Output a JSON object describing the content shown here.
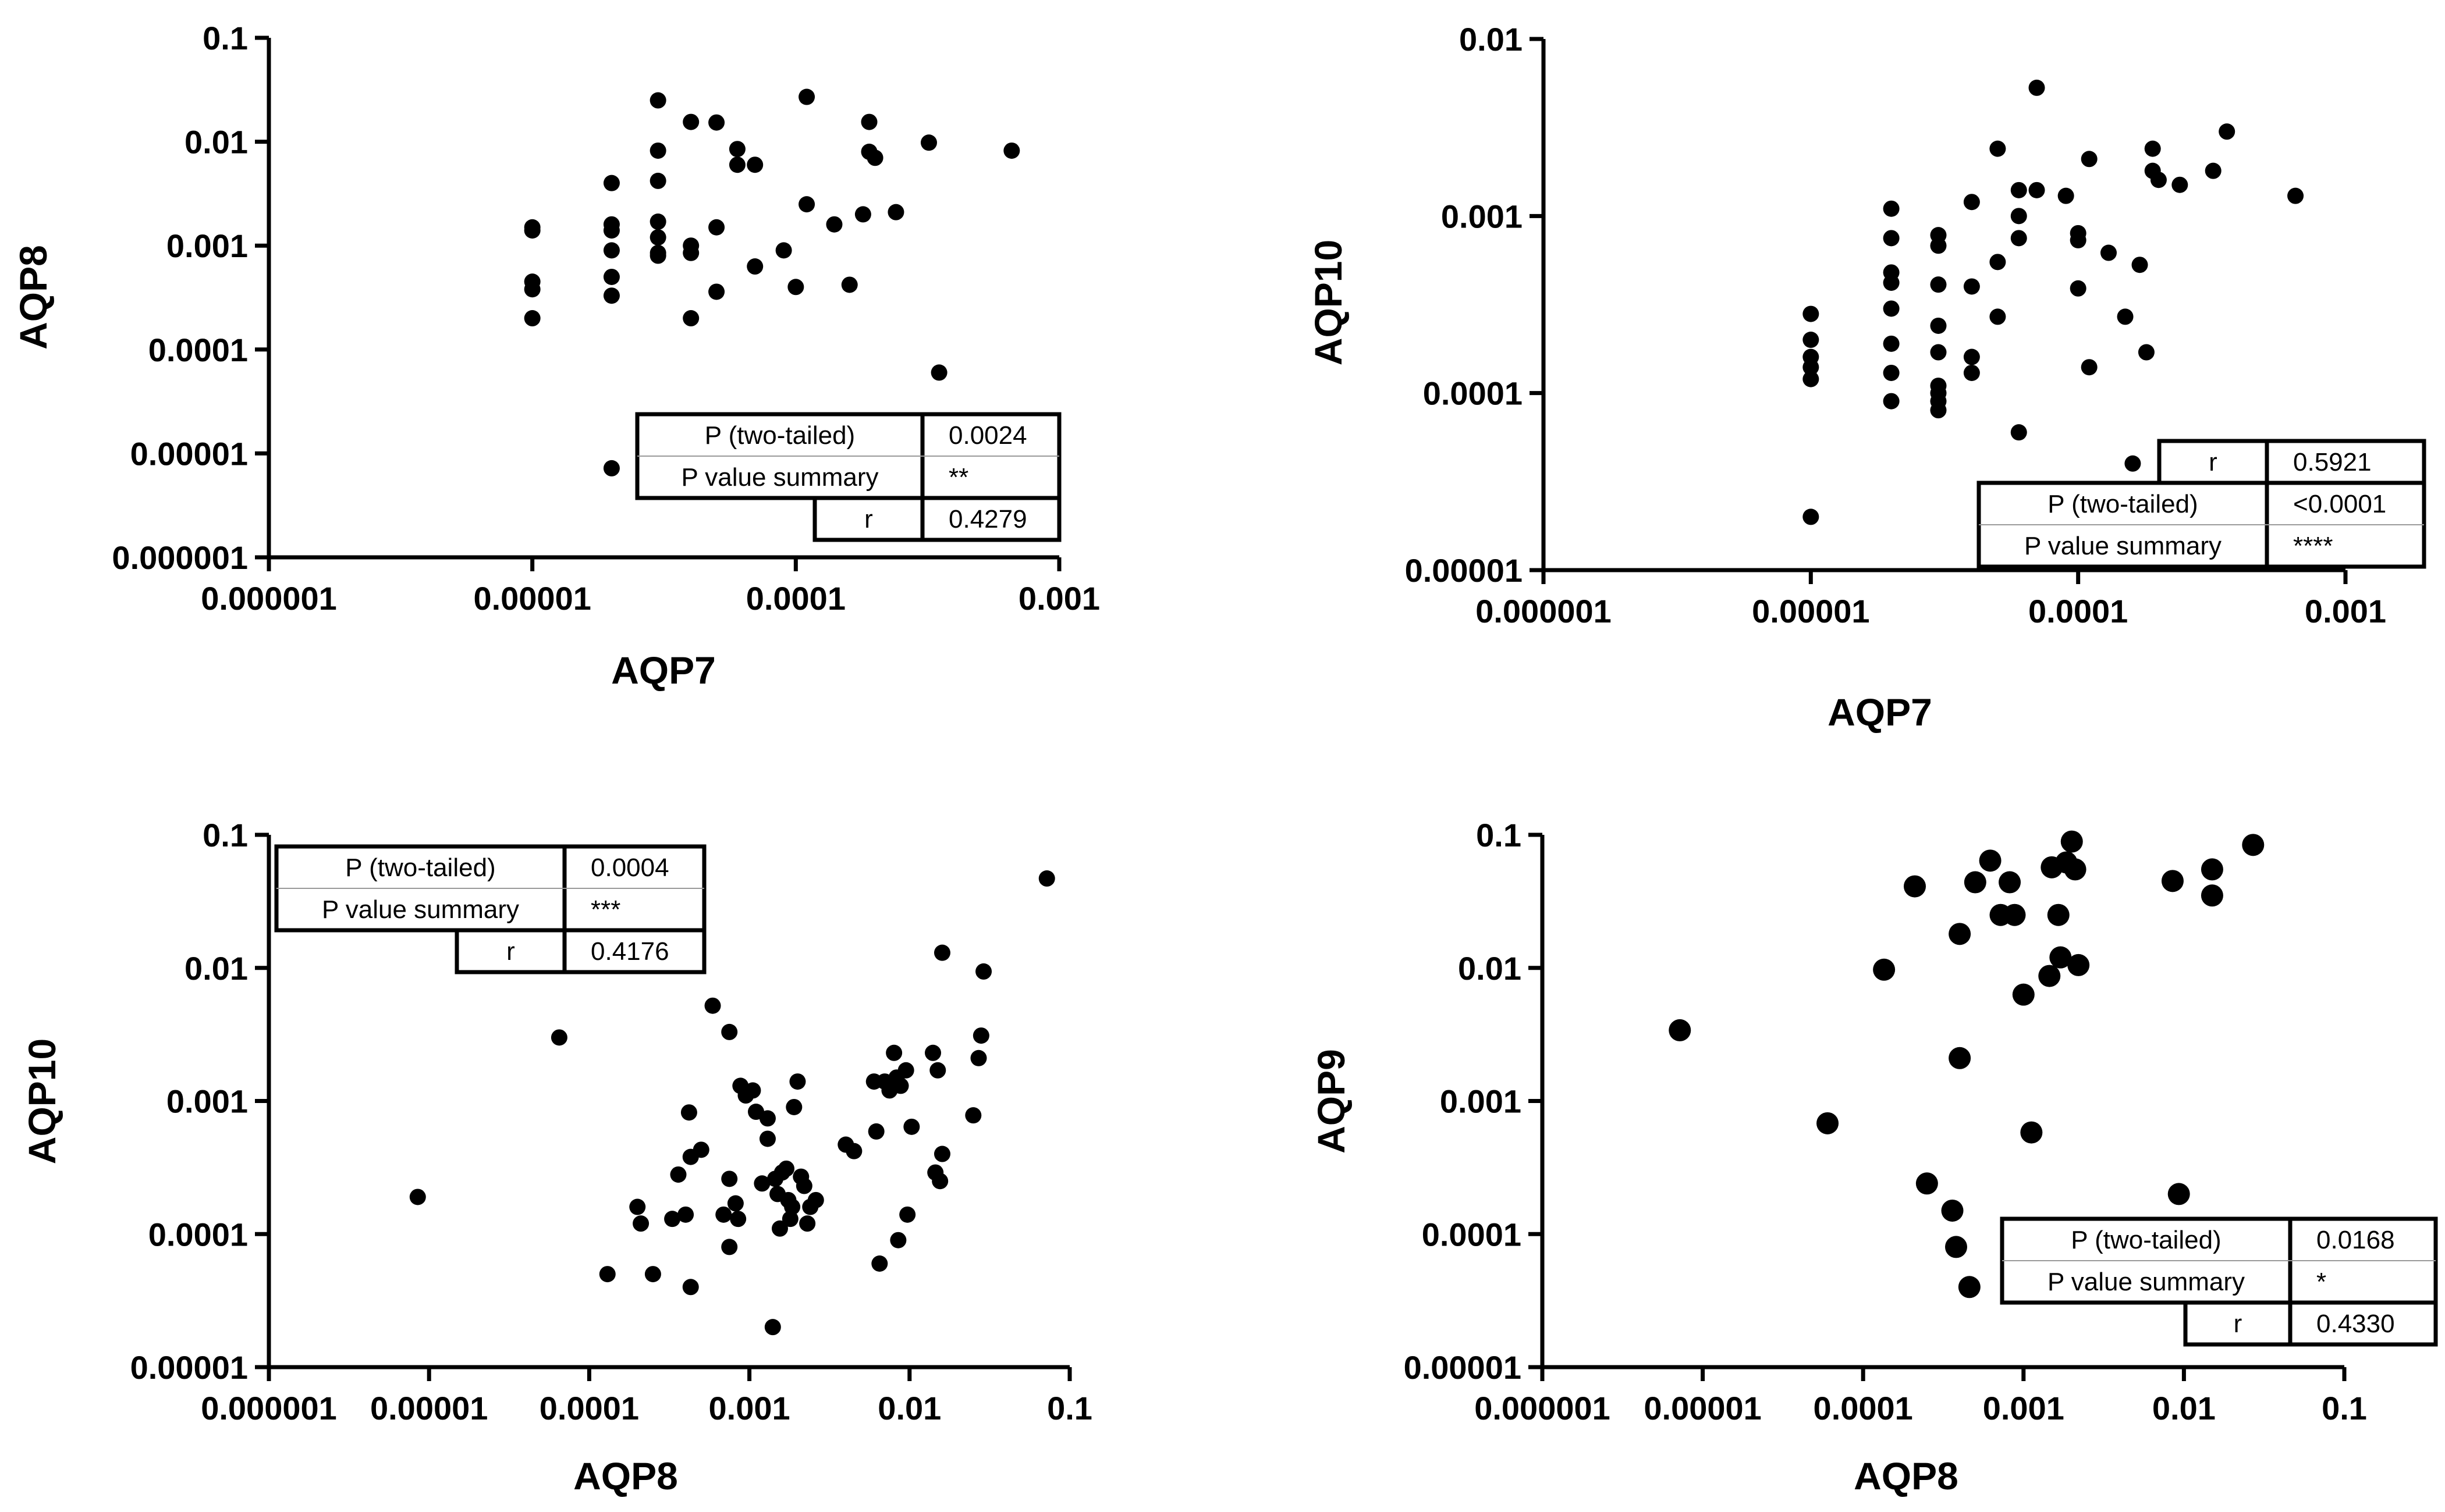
{
  "chart_data": [
    {
      "type": "scatter",
      "id": "p1",
      "xlabel": "AQP7",
      "ylabel": "AQP8",
      "x_scale": "log",
      "y_scale": "log",
      "xlim": [
        1e-06,
        0.001
      ],
      "ylim": [
        1e-06,
        0.1
      ],
      "x_tick_labels": [
        "0.000001",
        "0.00001",
        "0.0001",
        "0.001"
      ],
      "y_tick_labels": [
        "0.000001",
        "0.00001",
        "0.0001",
        "0.001",
        "0.01",
        "0.1"
      ],
      "stats_rows": [
        [
          "P (two-tailed)",
          "0.0024"
        ],
        [
          "P value summary",
          "**"
        ],
        [
          "r",
          "0.4279"
        ]
      ],
      "points": [
        [
          1e-05,
          0.0015
        ],
        [
          1e-05,
          0.0014
        ],
        [
          1e-05,
          0.00045
        ],
        [
          1e-05,
          0.00038
        ],
        [
          1e-05,
          0.0002
        ],
        [
          2e-05,
          0.004
        ],
        [
          2e-05,
          0.0016
        ],
        [
          2e-05,
          0.0014
        ],
        [
          2e-05,
          0.0009
        ],
        [
          2e-05,
          0.0005
        ],
        [
          2e-05,
          0.00033
        ],
        [
          2e-05,
          7.2e-06
        ],
        [
          3e-05,
          0.025
        ],
        [
          3e-05,
          0.0082
        ],
        [
          3e-05,
          0.0042
        ],
        [
          3e-05,
          0.0017
        ],
        [
          3e-05,
          0.0012
        ],
        [
          3e-05,
          0.00085
        ],
        [
          3e-05,
          0.0008
        ],
        [
          4e-05,
          0.0155
        ],
        [
          4e-05,
          0.001
        ],
        [
          4e-05,
          0.00085
        ],
        [
          4e-05,
          0.0002
        ],
        [
          5e-05,
          0.0153
        ],
        [
          5e-05,
          0.0015
        ],
        [
          5e-05,
          0.00036
        ],
        [
          6e-05,
          0.0085
        ],
        [
          6e-05,
          0.006
        ],
        [
          7e-05,
          0.006
        ],
        [
          7e-05,
          0.00063
        ],
        [
          9e-05,
          0.0009
        ],
        [
          0.0001,
          0.0004
        ],
        [
          0.00011,
          0.027
        ],
        [
          0.00011,
          0.0025
        ],
        [
          0.00014,
          0.0016
        ],
        [
          0.00016,
          0.00042
        ],
        [
          0.00018,
          0.002
        ],
        [
          0.00019,
          0.0155
        ],
        [
          0.00019,
          0.008
        ],
        [
          0.0002,
          0.007
        ],
        [
          0.00024,
          0.0021
        ],
        [
          0.00032,
          0.0098
        ],
        [
          0.00035,
          6e-05
        ],
        [
          0.00066,
          0.0082
        ]
      ]
    },
    {
      "type": "scatter",
      "id": "p2",
      "xlabel": "AQP7",
      "ylabel": "AQP10",
      "x_scale": "log",
      "y_scale": "log",
      "xlim": [
        1e-06,
        0.001
      ],
      "ylim": [
        1e-05,
        0.01
      ],
      "x_tick_labels": [
        "0.000001",
        "0.00001",
        "0.0001",
        "0.001"
      ],
      "y_tick_labels": [
        "0.00001",
        "0.0001",
        "0.001",
        "0.01"
      ],
      "stats_rows": [
        [
          "r",
          "0.5921"
        ],
        [
          "P (two-tailed)",
          "<0.0001"
        ],
        [
          "P value summary",
          "****"
        ]
      ],
      "points": [
        [
          1e-05,
          0.00028
        ],
        [
          1e-05,
          0.0002
        ],
        [
          1e-05,
          0.00016
        ],
        [
          1e-05,
          0.00014
        ],
        [
          1e-05,
          0.00012
        ],
        [
          1e-05,
          2e-05
        ],
        [
          2e-05,
          0.0011
        ],
        [
          2e-05,
          0.00075
        ],
        [
          2e-05,
          0.00048
        ],
        [
          2e-05,
          0.00042
        ],
        [
          2e-05,
          0.0003
        ],
        [
          2e-05,
          0.00019
        ],
        [
          2e-05,
          0.00013
        ],
        [
          2e-05,
          9e-05
        ],
        [
          3e-05,
          0.00078
        ],
        [
          3e-05,
          0.00068
        ],
        [
          3e-05,
          0.00041
        ],
        [
          3e-05,
          0.00024
        ],
        [
          3e-05,
          0.00017
        ],
        [
          3e-05,
          0.00011
        ],
        [
          3e-05,
          0.0001
        ],
        [
          3e-05,
          9e-05
        ],
        [
          3e-05,
          8e-05
        ],
        [
          4e-05,
          0.0012
        ],
        [
          4e-05,
          0.0004
        ],
        [
          4e-05,
          0.00016
        ],
        [
          4e-05,
          0.00013
        ],
        [
          5e-05,
          0.0024
        ],
        [
          5e-05,
          0.00055
        ],
        [
          5e-05,
          0.00027
        ],
        [
          6e-05,
          0.0014
        ],
        [
          6e-05,
          0.001
        ],
        [
          6e-05,
          0.00075
        ],
        [
          6e-05,
          6e-05
        ],
        [
          7e-05,
          0.0053
        ],
        [
          7e-05,
          0.0014
        ],
        [
          9e-05,
          0.0013
        ],
        [
          0.0001,
          0.0008
        ],
        [
          0.0001,
          0.00073
        ],
        [
          0.0001,
          0.00039
        ],
        [
          0.00011,
          0.0021
        ],
        [
          0.00011,
          0.00014
        ],
        [
          0.00013,
          0.00062
        ],
        [
          0.00015,
          0.00027
        ],
        [
          0.00016,
          4e-05
        ],
        [
          0.00017,
          0.00053
        ],
        [
          0.00018,
          0.00017
        ],
        [
          0.00019,
          0.0024
        ],
        [
          0.00019,
          0.0018
        ],
        [
          0.0002,
          0.0016
        ],
        [
          0.00024,
          0.0015
        ],
        [
          0.00032,
          0.0018
        ],
        [
          0.00036,
          0.003
        ],
        [
          0.00065,
          0.0013
        ]
      ]
    },
    {
      "type": "scatter",
      "id": "p3",
      "xlabel": "AQP8",
      "ylabel": "AQP10",
      "x_scale": "log",
      "y_scale": "log",
      "xlim": [
        1e-06,
        0.1
      ],
      "ylim": [
        1e-05,
        0.1
      ],
      "x_tick_labels": [
        "0.000001",
        "0.00001",
        "0.0001",
        "0.001",
        "0.01",
        "0.1"
      ],
      "y_tick_labels": [
        "0.00001",
        "0.0001",
        "0.001",
        "0.01",
        "0.1"
      ],
      "stats_rows": [
        [
          "P (two-tailed)",
          "0.0004"
        ],
        [
          "P value summary",
          "***"
        ],
        [
          "r",
          "0.4176"
        ]
      ],
      "points": [
        [
          8.5e-06,
          0.00019
        ],
        [
          6.5e-05,
          0.003
        ],
        [
          0.00013,
          5e-05
        ],
        [
          0.0002,
          0.00016
        ],
        [
          0.00021,
          0.00012
        ],
        [
          0.00025,
          5e-05
        ],
        [
          0.00033,
          0.00013
        ],
        [
          0.00036,
          0.00028
        ],
        [
          0.0004,
          0.00014
        ],
        [
          0.00042,
          0.00082
        ],
        [
          0.00043,
          4e-05
        ],
        [
          0.00043,
          0.00038
        ],
        [
          0.0005,
          0.00043
        ],
        [
          0.00059,
          0.0052
        ],
        [
          0.00069,
          0.00014
        ],
        [
          0.00075,
          0.0033
        ],
        [
          0.00075,
          0.00026
        ],
        [
          0.00075,
          8e-05
        ],
        [
          0.00082,
          0.00017
        ],
        [
          0.00085,
          0.00013
        ],
        [
          0.00088,
          0.0013
        ],
        [
          0.00095,
          0.0011
        ],
        [
          0.00105,
          0.0012
        ],
        [
          0.0011,
          0.00083
        ],
        [
          0.0012,
          0.00024
        ],
        [
          0.0013,
          0.00074
        ],
        [
          0.0013,
          0.00052
        ],
        [
          0.0014,
          2e-05
        ],
        [
          0.00145,
          0.00026
        ],
        [
          0.0015,
          0.0002
        ],
        [
          0.00155,
          0.00011
        ],
        [
          0.0016,
          0.00029
        ],
        [
          0.0017,
          0.00031
        ],
        [
          0.00175,
          0.00018
        ],
        [
          0.0018,
          0.00013
        ],
        [
          0.00185,
          0.00016
        ],
        [
          0.0019,
          0.0009
        ],
        [
          0.002,
          0.0014
        ],
        [
          0.0021,
          0.00027
        ],
        [
          0.0022,
          0.00023
        ],
        [
          0.0023,
          0.00012
        ],
        [
          0.0024,
          0.00016
        ],
        [
          0.0026,
          0.00018
        ],
        [
          0.004,
          0.00047
        ],
        [
          0.0045,
          0.00042
        ],
        [
          0.006,
          0.0014
        ],
        [
          0.0062,
          0.00059
        ],
        [
          0.0065,
          6e-05
        ],
        [
          0.007,
          0.0014
        ],
        [
          0.0075,
          0.0012
        ],
        [
          0.008,
          0.0023
        ],
        [
          0.0083,
          0.0015
        ],
        [
          0.0085,
          9e-05
        ],
        [
          0.0088,
          0.0013
        ],
        [
          0.0095,
          0.0017
        ],
        [
          0.0097,
          0.00014
        ],
        [
          0.0103,
          0.00064
        ],
        [
          0.014,
          0.0023
        ],
        [
          0.0145,
          0.00029
        ],
        [
          0.015,
          0.0017
        ],
        [
          0.0155,
          0.00025
        ],
        [
          0.016,
          0.013
        ],
        [
          0.016,
          0.0004
        ],
        [
          0.025,
          0.00078
        ],
        [
          0.027,
          0.0021
        ],
        [
          0.028,
          0.0031
        ],
        [
          0.029,
          0.0094
        ],
        [
          0.072,
          0.047
        ]
      ]
    },
    {
      "type": "scatter",
      "id": "p4",
      "xlabel": "AQP8",
      "ylabel": "AQP9",
      "x_scale": "log",
      "y_scale": "log",
      "xlim": [
        1e-06,
        0.1
      ],
      "ylim": [
        1e-05,
        0.1
      ],
      "x_tick_labels": [
        "0.000001",
        "0.00001",
        "0.0001",
        "0.001",
        "0.01",
        "0.1"
      ],
      "y_tick_labels": [
        "0.00001",
        "0.0001",
        "0.001",
        "0.01",
        "0.1"
      ],
      "stats_rows": [
        [
          "P (two-tailed)",
          "0.0168"
        ],
        [
          "P value summary",
          "*"
        ],
        [
          "r",
          "0.4330"
        ]
      ],
      "points": [
        [
          7.2e-06,
          0.0034
        ],
        [
          6e-05,
          0.00068
        ],
        [
          0.000135,
          0.0097
        ],
        [
          0.00021,
          0.041
        ],
        [
          0.00025,
          0.00024
        ],
        [
          0.00036,
          0.00015
        ],
        [
          0.00038,
          8e-05
        ],
        [
          0.0004,
          0.018
        ],
        [
          0.0004,
          0.0021
        ],
        [
          0.00046,
          4e-05
        ],
        [
          0.0005,
          0.044
        ],
        [
          0.00062,
          0.064
        ],
        [
          0.00072,
          0.025
        ],
        [
          0.00082,
          0.044
        ],
        [
          0.00088,
          0.025
        ],
        [
          0.001,
          0.0063
        ],
        [
          0.00112,
          0.00058
        ],
        [
          0.00145,
          0.0087
        ],
        [
          0.0015,
          0.057
        ],
        [
          0.00165,
          0.025
        ],
        [
          0.0017,
          0.012
        ],
        [
          0.00185,
          0.062
        ],
        [
          0.002,
          0.089
        ],
        [
          0.0021,
          0.055
        ],
        [
          0.0022,
          0.0105
        ],
        [
          0.0093,
          0.0002
        ],
        [
          0.0085,
          0.045
        ],
        [
          0.015,
          0.055
        ],
        [
          0.015,
          0.035
        ],
        [
          0.027,
          0.084
        ]
      ]
    }
  ]
}
